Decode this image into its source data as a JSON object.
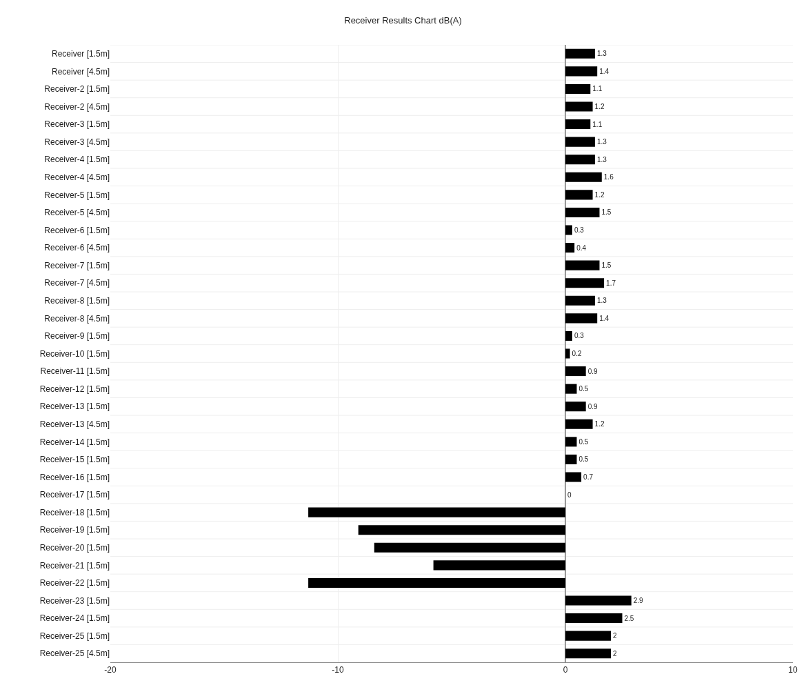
{
  "chart_data": {
    "type": "bar",
    "orientation": "horizontal",
    "title": "Receiver Results Chart dB(A)",
    "categories": [
      "Receiver [1.5m]",
      "Receiver [4.5m]",
      "Receiver-2 [1.5m]",
      "Receiver-2 [4.5m]",
      "Receiver-3 [1.5m]",
      "Receiver-3 [4.5m]",
      "Receiver-4 [1.5m]",
      "Receiver-4 [4.5m]",
      "Receiver-5 [1.5m]",
      "Receiver-5 [4.5m]",
      "Receiver-6 [1.5m]",
      "Receiver-6 [4.5m]",
      "Receiver-7 [1.5m]",
      "Receiver-7 [4.5m]",
      "Receiver-8 [1.5m]",
      "Receiver-8 [4.5m]",
      "Receiver-9 [1.5m]",
      "Receiver-10 [1.5m]",
      "Receiver-11 [1.5m]",
      "Receiver-12 [1.5m]",
      "Receiver-13 [1.5m]",
      "Receiver-13 [4.5m]",
      "Receiver-14 [1.5m]",
      "Receiver-15 [1.5m]",
      "Receiver-16 [1.5m]",
      "Receiver-17 [1.5m]",
      "Receiver-18 [1.5m]",
      "Receiver-19 [1.5m]",
      "Receiver-20 [1.5m]",
      "Receiver-21 [1.5m]",
      "Receiver-22 [1.5m]",
      "Receiver-23 [1.5m]",
      "Receiver-24 [1.5m]",
      "Receiver-25 [1.5m]",
      "Receiver-25 [4.5m]"
    ],
    "values": [
      1.3,
      1.4,
      1.1,
      1.2,
      1.1,
      1.3,
      1.3,
      1.6,
      1.2,
      1.5,
      0.3,
      0.4,
      1.5,
      1.7,
      1.3,
      1.4,
      0.3,
      0.2,
      0.9,
      0.5,
      0.9,
      1.2,
      0.5,
      0.5,
      0.7,
      0,
      -11.3,
      -9.1,
      -8.4,
      -5.8,
      -11.3,
      2.9,
      2.5,
      2,
      2
    ],
    "value_labels": [
      "1.3",
      "1.4",
      "1.1",
      "1.2",
      "1.1",
      "1.3",
      "1.3",
      "1.6",
      "1.2",
      "1.5",
      "0.3",
      "0.4",
      "1.5",
      "1.7",
      "1.3",
      "1.4",
      "0.3",
      "0.2",
      "0.9",
      "0.5",
      "0.9",
      "1.2",
      "0.5",
      "0.5",
      "0.7",
      "0",
      null,
      null,
      null,
      null,
      null,
      "2.9",
      "2.5",
      "2",
      "2"
    ],
    "color": "#000000",
    "xlim": [
      -20,
      10
    ],
    "xticks": [
      -20,
      -10,
      0,
      10
    ],
    "grid": true,
    "legend": false
  }
}
